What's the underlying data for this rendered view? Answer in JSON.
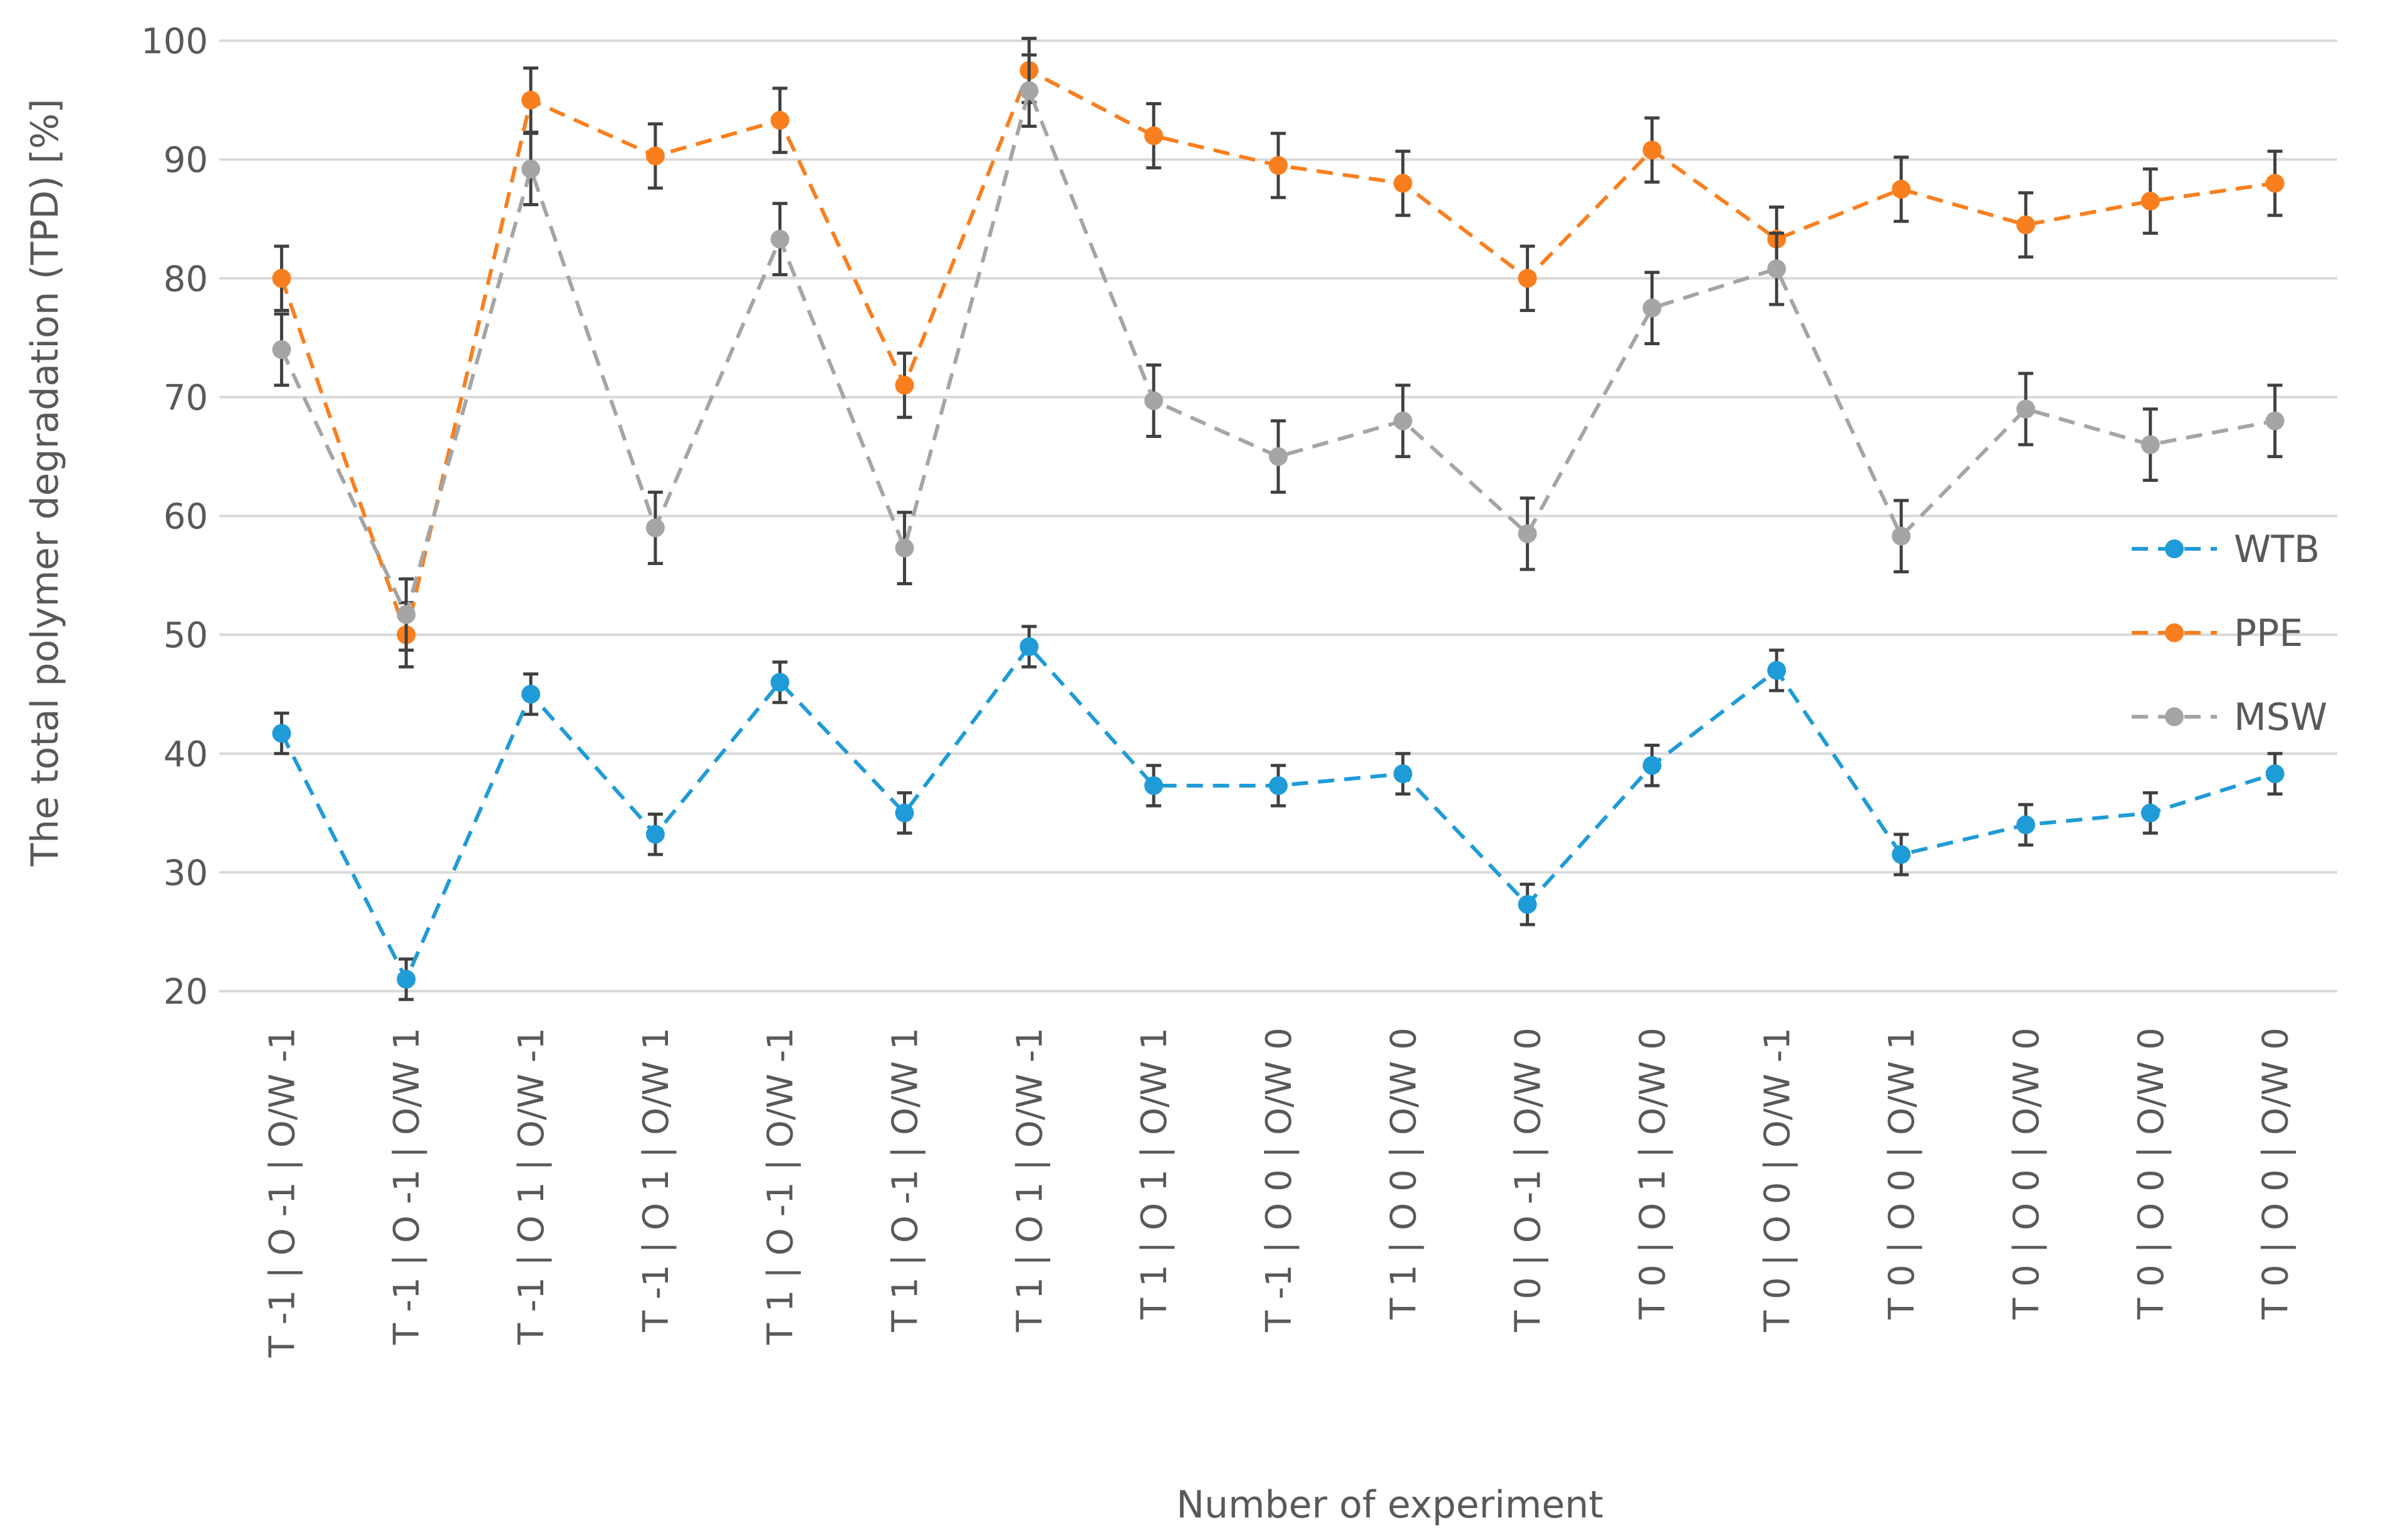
{
  "chart_data": {
    "type": "line",
    "title": "",
    "xlabel": "Number of experiment",
    "ylabel": "The total polymer degradation (TPD) [%]",
    "ylim": [
      20,
      100
    ],
    "yticks": [
      20,
      30,
      40,
      50,
      60,
      70,
      80,
      90,
      100
    ],
    "grid": true,
    "legend_position": "right",
    "categories": [
      "T -1 | O -1 | O/W -1",
      "T -1 | O -1 | O/W 1",
      "T -1 | O 1 | O/W -1",
      "T -1 | O 1 | O/W 1",
      "T 1 | O -1 | O/W -1",
      "T 1 | O -1 | O/W 1",
      "T 1 | O 1 | O/W -1",
      "T 1 | O 1 | O/W 1",
      "T -1 | O 0 | O/W 0",
      "T 1 | O 0 | O/W 0",
      "T 0 | O -1 | O/W 0",
      "T 0 | O 1 | O/W 0",
      "T 0 | O 0 | O/W -1",
      "T 0 | O 0 | O/W 1",
      "T 0 | O 0 | O/W 0",
      "T 0 | O 0 | O/W 0",
      "T 0 | O 0 | O/W 0"
    ],
    "series": [
      {
        "name": "WTB",
        "color": "#1f9bd7",
        "values": [
          41.7,
          21.0,
          45.0,
          33.2,
          46.0,
          35.0,
          49.0,
          37.3,
          37.3,
          38.3,
          27.3,
          39.0,
          47.0,
          31.5,
          34.0,
          35.0,
          38.3
        ],
        "errors": [
          1.7,
          1.7,
          1.7,
          1.7,
          1.7,
          1.7,
          1.7,
          1.7,
          1.7,
          1.7,
          1.7,
          1.7,
          1.7,
          1.7,
          1.7,
          1.7,
          1.7
        ]
      },
      {
        "name": "PPE",
        "color": "#f97f1e",
        "values": [
          80.0,
          50.0,
          95.0,
          90.3,
          93.3,
          71.0,
          97.5,
          92.0,
          89.5,
          88.0,
          80.0,
          90.8,
          83.3,
          87.5,
          84.5,
          86.5,
          88.0
        ],
        "errors": [
          2.7,
          2.7,
          2.7,
          2.7,
          2.7,
          2.7,
          2.7,
          2.7,
          2.7,
          2.7,
          2.7,
          2.7,
          2.7,
          2.7,
          2.7,
          2.7,
          2.7
        ]
      },
      {
        "name": "MSW",
        "color": "#a5a5a5",
        "values": [
          74.0,
          51.7,
          89.2,
          59.0,
          83.3,
          57.3,
          95.8,
          69.7,
          65.0,
          68.0,
          58.5,
          77.5,
          80.8,
          58.3,
          69.0,
          66.0,
          68.0
        ],
        "errors": [
          3.0,
          3.0,
          3.0,
          3.0,
          3.0,
          3.0,
          3.0,
          3.0,
          3.0,
          3.0,
          3.0,
          3.0,
          3.0,
          3.0,
          3.0,
          3.0,
          3.0
        ]
      }
    ]
  }
}
